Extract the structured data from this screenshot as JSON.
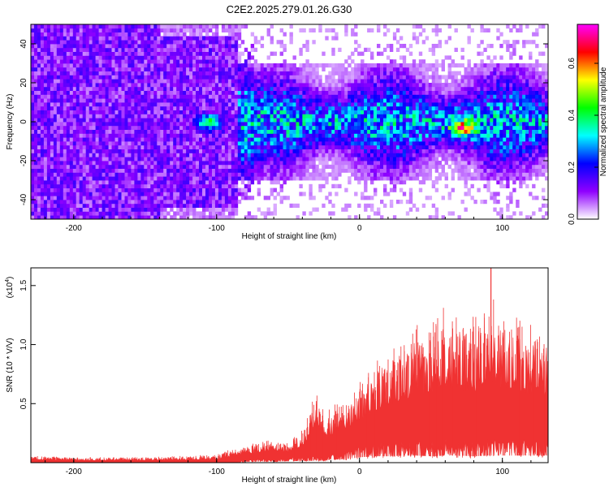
{
  "title": "C2E2.2025.279.01.26.G30",
  "chart_data": [
    {
      "type": "heatmap",
      "name": "spectrogram",
      "xlabel": "Height of straight line (km)",
      "ylabel": "Frequency (Hz)",
      "xlim": [
        -230,
        132
      ],
      "ylim": [
        -50,
        50
      ],
      "xticks": [
        -200,
        -100,
        0,
        100
      ],
      "yticks": [
        -40,
        -20,
        0,
        20,
        40
      ],
      "xtick_labels": [
        "-200",
        "-100",
        "0",
        "100"
      ],
      "ytick_labels": [
        "-40",
        "-20",
        "0",
        "20",
        "40"
      ],
      "colorbar": {
        "label": "Normalized spectral amplitude",
        "range": [
          0,
          0.75
        ],
        "ticks": [
          0.0,
          0.2,
          0.4,
          0.6
        ],
        "tick_labels": [
          "0.0",
          "0.2",
          "0.4",
          "0.6"
        ],
        "colors": [
          "#ffffff",
          "#8f00ff",
          "#0000ff",
          "#00ffff",
          "#00ff00",
          "#ffff00",
          "#ff0000",
          "#ff00ff"
        ]
      },
      "features": [
        {
          "x": -105,
          "y": 0,
          "amplitude": 0.5
        },
        {
          "x": 72,
          "y": -3,
          "amplitude": 0.6
        }
      ]
    },
    {
      "type": "area",
      "name": "snr",
      "xlabel": "Height of straight line (km)",
      "ylabel": "SNR (10 * V/V)",
      "multiplier_label": "(x10",
      "multiplier_exp": "4",
      "multiplier_close": ")",
      "xlim": [
        -230,
        132
      ],
      "ylim": [
        0,
        1.65
      ],
      "xticks": [
        -200,
        -100,
        0,
        100
      ],
      "yticks": [
        0.5,
        1.0,
        1.5
      ],
      "xtick_labels": [
        "-200",
        "-100",
        "0",
        "100"
      ],
      "ytick_labels": [
        "0.5",
        "1.0",
        "1.5"
      ],
      "color": "#f03232",
      "envelope": {
        "x": [
          -230,
          -200,
          -150,
          -100,
          -90,
          -80,
          -70,
          -60,
          -50,
          -40,
          -35,
          -30,
          -25,
          -20,
          -10,
          0,
          10,
          20,
          30,
          40,
          50,
          60,
          70,
          80,
          90,
          100,
          110,
          120,
          132
        ],
        "min": [
          0.0,
          0.0,
          0.0,
          0.0,
          0.0,
          0.02,
          0.03,
          0.03,
          0.04,
          0.05,
          0.05,
          0.06,
          0.06,
          0.08,
          0.1,
          0.15,
          0.18,
          0.18,
          0.2,
          0.2,
          0.18,
          0.2,
          0.2,
          0.18,
          0.2,
          0.2,
          0.2,
          0.2,
          0.2
        ],
        "max": [
          0.05,
          0.04,
          0.04,
          0.06,
          0.1,
          0.13,
          0.16,
          0.18,
          0.15,
          0.25,
          0.4,
          0.6,
          0.38,
          0.42,
          0.5,
          0.62,
          0.75,
          0.85,
          0.9,
          1.05,
          1.1,
          1.2,
          1.12,
          1.1,
          1.28,
          1.15,
          1.1,
          1.05,
          1.0
        ]
      },
      "peak": {
        "x": 92,
        "y": 1.65
      }
    }
  ]
}
